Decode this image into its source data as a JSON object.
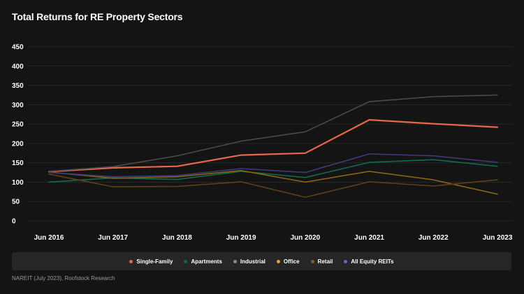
{
  "chart_data": {
    "type": "line",
    "title": "Total Returns for RE Property Sectors",
    "x": [
      "Jun 2016",
      "Jun 2017",
      "Jun 2018",
      "Jun 2019",
      "Jun 2020",
      "Jun 2021",
      "Jun 2022",
      "Jun 2023"
    ],
    "y_ticks": [
      "0",
      "50",
      "100",
      "150",
      "200",
      "250",
      "300",
      "350",
      "400",
      "450"
    ],
    "ylim": [
      0,
      450
    ],
    "grid": true,
    "legend_position": "bottom",
    "series": [
      {
        "name": "Single-Family",
        "color": "#e8674a",
        "width": 2.2,
        "values": [
          127,
          137,
          141,
          170,
          175,
          261,
          251,
          242
        ]
      },
      {
        "name": "Apartments",
        "color": "#0f6b50",
        "width": 1.6,
        "values": [
          100,
          111,
          107,
          128,
          112,
          151,
          158,
          141
        ]
      },
      {
        "name": "Industrial",
        "color": "#4a4a4a",
        "width": 1.6,
        "values": [
          128,
          140,
          168,
          206,
          230,
          308,
          321,
          325
        ]
      },
      {
        "name": "Office",
        "color": "#8a6412",
        "width": 1.6,
        "values": [
          126,
          110,
          114,
          130,
          100,
          128,
          106,
          69
        ]
      },
      {
        "name": "Retail",
        "color": "#5e4018",
        "width": 1.6,
        "values": [
          121,
          88,
          89,
          101,
          61,
          101,
          90,
          106
        ]
      },
      {
        "name": "All Equity REITs",
        "color": "#3f3a7a",
        "width": 1.6,
        "values": [
          125,
          114,
          117,
          135,
          125,
          173,
          168,
          151
        ]
      }
    ],
    "legend_colors": [
      "#e8674a",
      "#0f6b50",
      "#8a8a8a",
      "#e0a23a",
      "#8a5a2a",
      "#6a62c8"
    ],
    "source": "NAREIT (July 2023), Roofstock Research"
  }
}
